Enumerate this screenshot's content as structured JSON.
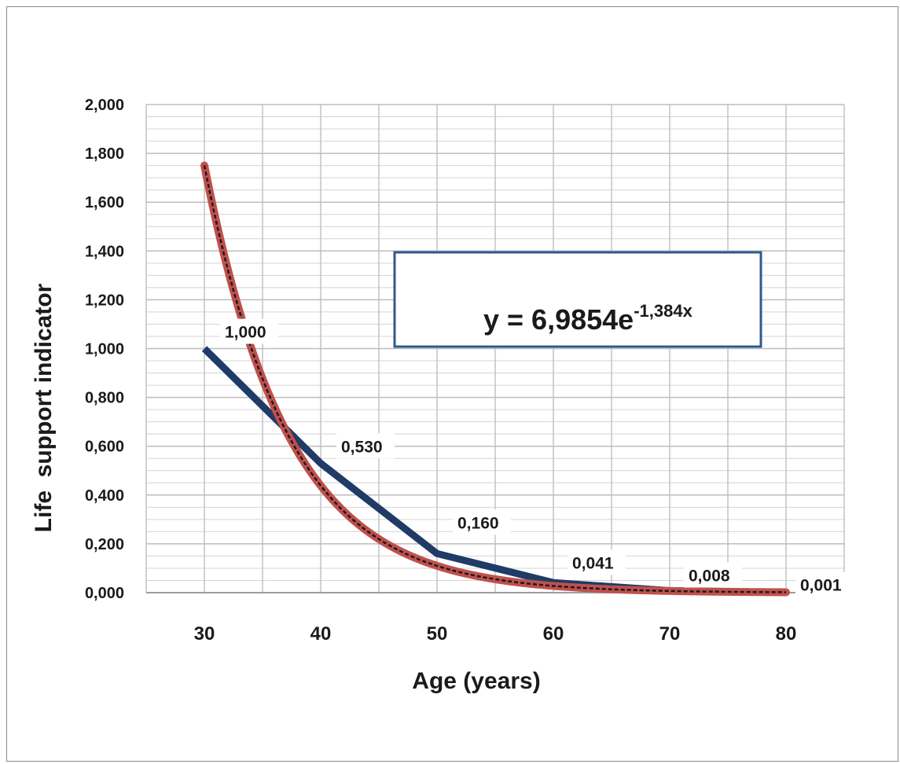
{
  "chart_data": {
    "type": "line",
    "xlabel": "Age (years)",
    "ylabel": "Life  support indicator",
    "xlim": [
      25,
      85
    ],
    "ylim": [
      0,
      2
    ],
    "x_ticks": [
      "30",
      "40",
      "50",
      "60",
      "70",
      "80"
    ],
    "x_tick_values": [
      30,
      40,
      50,
      60,
      70,
      80
    ],
    "y_ticks": [
      "0,000",
      "0,200",
      "0,400",
      "0,600",
      "0,800",
      "1,000",
      "1,200",
      "1,400",
      "1,600",
      "1,800",
      "2,000"
    ],
    "y_tick_values": [
      0,
      0.2,
      0.4,
      0.6,
      0.8,
      1.0,
      1.2,
      1.4,
      1.6,
      1.8,
      2.0
    ],
    "grid": true,
    "series": [
      {
        "x": [
          30,
          40,
          50,
          60,
          70,
          80
        ],
        "values": [
          1.0,
          0.53,
          0.16,
          0.041,
          0.008,
          0.001
        ],
        "data_labels": [
          "1,000",
          "0,530",
          "0,160",
          "0,041",
          "0,008",
          "0,001"
        ],
        "color": "#1f3b66"
      }
    ],
    "trendline": {
      "type": "exponential",
      "coefficient": 6.9854,
      "exponent": -1.384,
      "color": "#c0504d",
      "core_color": "#1a1a1a",
      "equation_text": "y = 6,9854e",
      "equation_exponent_text": "-1,384x",
      "box_border_color": "#2e5a8e"
    }
  }
}
